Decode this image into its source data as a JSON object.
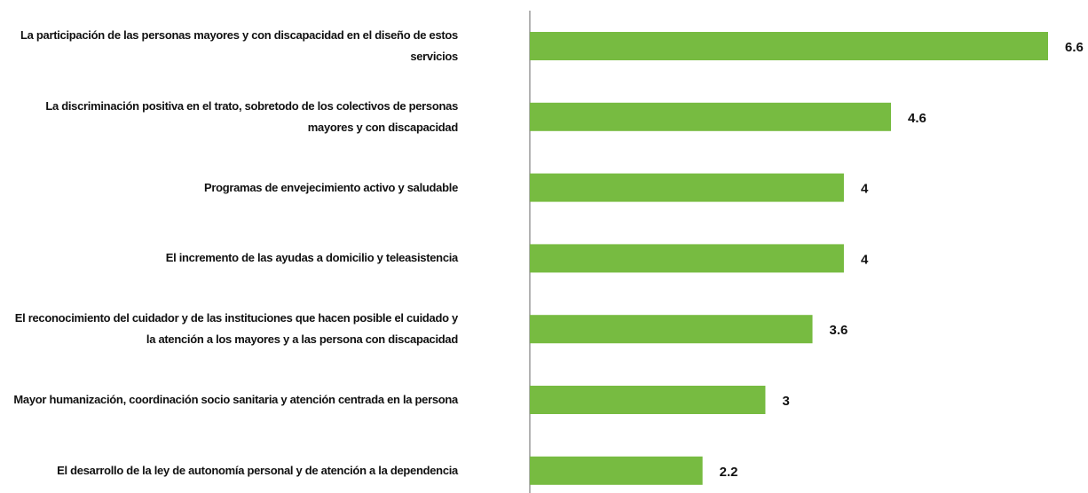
{
  "chart_data": {
    "type": "bar",
    "orientation": "horizontal",
    "categories": [
      "La participación de las personas mayores y con discapacidad en el diseño de estos servicios",
      "La discriminación positiva en el trato, sobretodo de los colectivos de personas mayores y con discapacidad",
      "Programas de envejecimiento activo y saludable",
      "El incremento de las ayudas a domicilio y teleasistencia",
      "El reconocimiento del cuidador y de las instituciones que hacen posible el cuidado y la atención a los mayores y a las persona con discapacidad",
      "Mayor humanización, coordinación socio sanitaria  y atención centrada en la persona",
      "El desarrollo de la ley de autonomía personal y de atención a la dependencia"
    ],
    "values": [
      6.6,
      4.6,
      4,
      4,
      3.6,
      3,
      2.2
    ],
    "color": "#77bb41"
  }
}
